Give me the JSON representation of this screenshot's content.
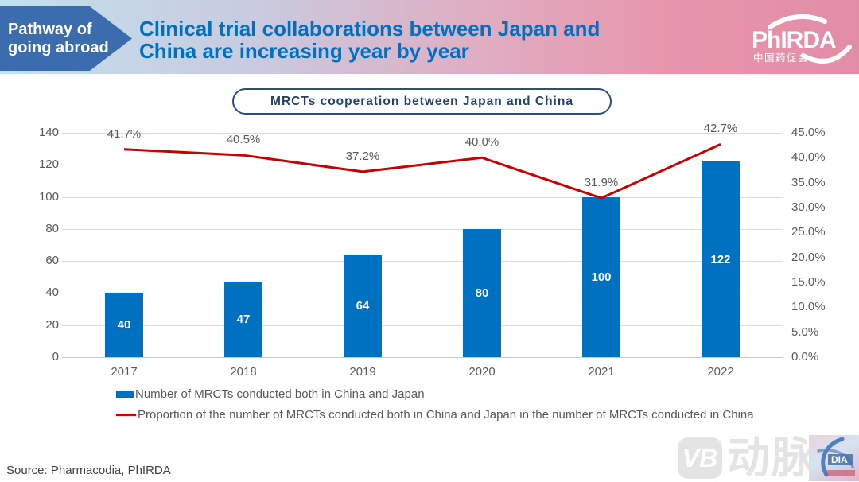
{
  "header": {
    "badge_line1": "Pathway of",
    "badge_line2": "going abroad",
    "title_line1": "Clinical trial collaborations between Japan and",
    "title_line2": "China are increasing year by year",
    "logo_name": "PhIRDA",
    "logo_subtitle": "中国药促会"
  },
  "chart_data": {
    "type": "bar+line combo",
    "title": "MRCTs cooperation between Japan and China",
    "categories": [
      "2017",
      "2018",
      "2019",
      "2020",
      "2021",
      "2022"
    ],
    "series": [
      {
        "name": "Number of MRCTs conducted both in China and Japan",
        "type": "bar",
        "axis": "left",
        "values": [
          40,
          47,
          64,
          80,
          100,
          122
        ],
        "color": "#0070c0"
      },
      {
        "name": "Proportion of the number of MRCTs conducted both in China and Japan in the number of MRCTs conducted in China",
        "type": "line",
        "axis": "right",
        "values": [
          41.7,
          40.5,
          37.2,
          40.0,
          31.9,
          42.7
        ],
        "point_labels": [
          "41.7%",
          "40.5%",
          "37.2%",
          "40.0%",
          "31.9%",
          "42.7%"
        ],
        "color": "#c80000"
      }
    ],
    "left_axis": {
      "min": 0,
      "max": 140,
      "tick_step": 20,
      "tick_labels": [
        "0",
        "20",
        "40",
        "60",
        "80",
        "100",
        "120",
        "140"
      ]
    },
    "right_axis": {
      "min": 0,
      "max": 45,
      "tick_step": 5,
      "tick_labels": [
        "0.0%",
        "5.0%",
        "10.0%",
        "15.0%",
        "20.0%",
        "25.0%",
        "30.0%",
        "35.0%",
        "40.0%",
        "45.0%"
      ]
    },
    "grid": true,
    "legend_position": "bottom-left"
  },
  "footer": {
    "source": "Source: Pharmacodia, PhIRDA"
  },
  "watermark": {
    "vb": "VB",
    "text": "动脉网",
    "stamp": "DIA"
  },
  "colors": {
    "bar": "#0070c0",
    "line": "#c80000",
    "title_blue": "#0070c0",
    "navy": "#2d4d85",
    "axis_gray": "#595959",
    "grid": "#dcdcdc",
    "arrow_blue": "#3b6dae",
    "watermark_gray": "#e4e4e4"
  }
}
